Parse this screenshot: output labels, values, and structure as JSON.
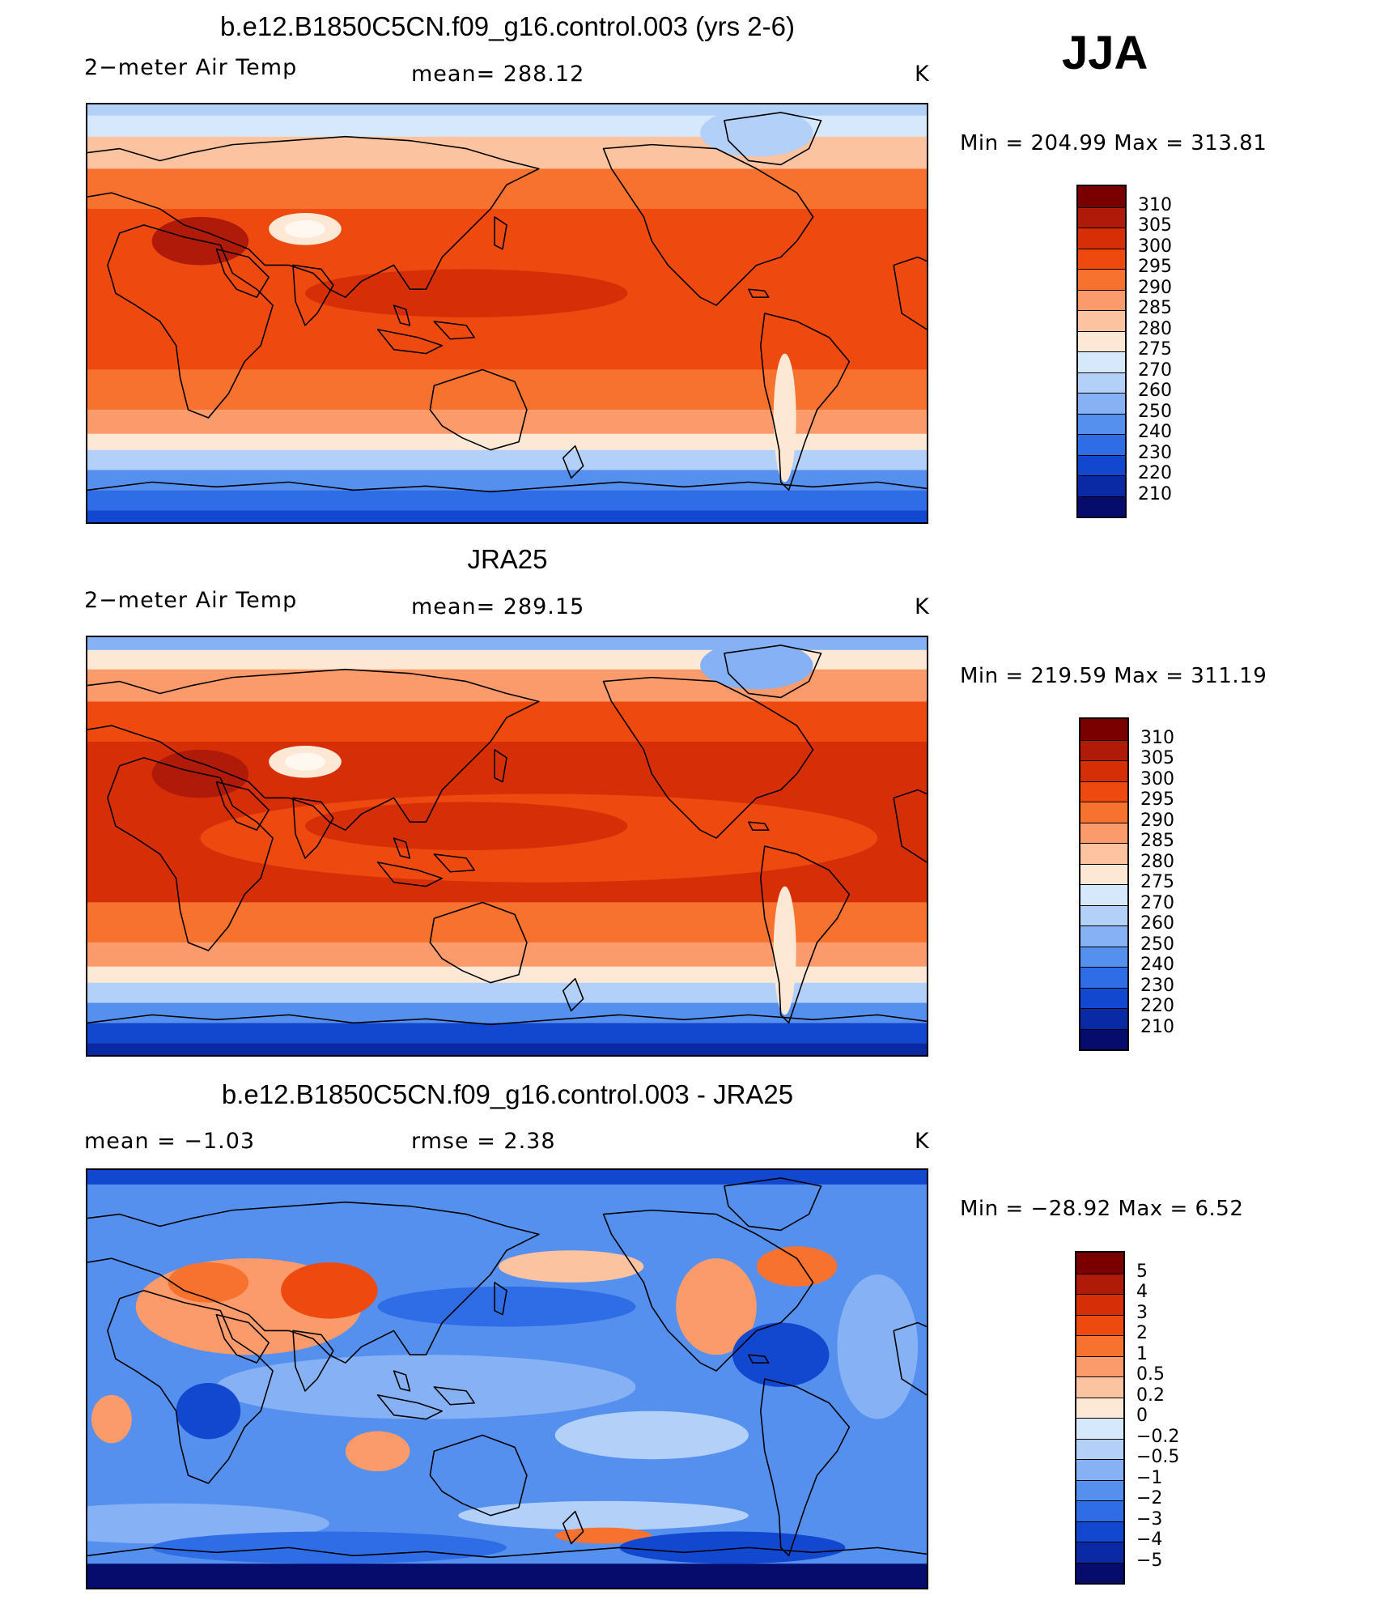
{
  "season": "JJA",
  "panels": [
    {
      "title": "b.e12.B1850C5CN.f09_g16.control.003 (yrs 2-6)",
      "left": "2−meter Air Temp",
      "center": "mean=  288.12",
      "units": "K",
      "minmax": "Min  =  204.99  Max  =  313.81",
      "map_kind": "model"
    },
    {
      "title": "JRA25",
      "left": "2−meter Air Temp",
      "center": "mean=  289.15",
      "units": "K",
      "minmax": "Min  =  219.59  Max  =  311.19",
      "map_kind": "obs"
    },
    {
      "title": "b.e12.B1850C5CN.f09_g16.control.003 - JRA25",
      "left": "mean  =    −1.03",
      "center": "rmse  =     2.38",
      "units": "K",
      "minmax": "Min  =  −28.92  Max  =     6.52",
      "map_kind": "diff"
    }
  ],
  "colorbars": {
    "temperature": {
      "labels": [
        "310",
        "305",
        "300",
        "295",
        "290",
        "285",
        "280",
        "275",
        "270",
        "260",
        "250",
        "240",
        "230",
        "220",
        "210"
      ],
      "colors": [
        "#7a0000",
        "#b01a08",
        "#d62f08",
        "#ee4a10",
        "#f7722e",
        "#fb9a6a",
        "#fcc3a0",
        "#fde8d6",
        "#d6e8fb",
        "#b3d0f9",
        "#86b2f5",
        "#5590ef",
        "#2f6de6",
        "#1248cf",
        "#0a2aa5",
        "#050c6c"
      ]
    },
    "difference": {
      "labels": [
        "5",
        "4",
        "3",
        "2",
        "1",
        "0.5",
        "0.2",
        "0",
        "−0.2",
        "−0.5",
        "−1",
        "−2",
        "−3",
        "−4",
        "−5"
      ],
      "colors": [
        "#7a0000",
        "#b01a08",
        "#d62f08",
        "#ee4a10",
        "#f7722e",
        "#fb9a6a",
        "#fcc3a0",
        "#fde8d6",
        "#d6e8fb",
        "#b3d0f9",
        "#86b2f5",
        "#5590ef",
        "#2f6de6",
        "#1248cf",
        "#0a2aa5",
        "#050c6c"
      ]
    }
  }
}
